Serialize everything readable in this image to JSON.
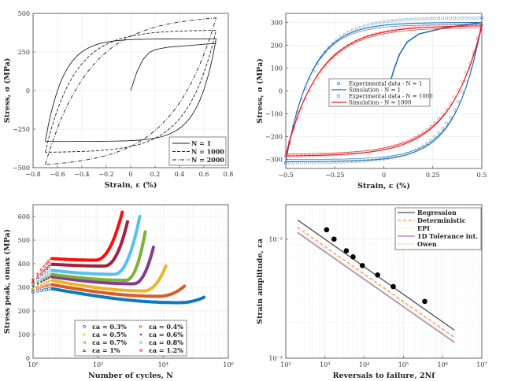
{
  "chart_data": [
    {
      "id": "hysteresis_loops",
      "type": "line",
      "title": "",
      "xlabel": "Strain, ε (%)",
      "ylabel": "Stress, σ (MPa)",
      "xlim": [
        -0.8,
        0.8
      ],
      "ylim": [
        -500,
        500
      ],
      "xticks": [
        -0.8,
        -0.6,
        -0.4,
        -0.2,
        0,
        0.2,
        0.4,
        0.6,
        0.8
      ],
      "xticklabels": [
        "−0.8",
        "−0.6",
        "−0.4",
        "−0.2",
        "0",
        "0.2",
        "0.4",
        "0.6",
        "0.8"
      ],
      "yticks": [
        -500,
        -250,
        0,
        250,
        500
      ],
      "yticklabels": [
        "−500",
        "−250",
        "0",
        "250",
        "500"
      ],
      "grid": true,
      "legend_position": "bottom-right",
      "initial_loading": {
        "x": [
          0,
          0.05,
          0.1,
          0.15,
          0.2,
          0.3,
          0.45,
          0.6,
          0.7
        ],
        "y": [
          0,
          120,
          200,
          245,
          265,
          280,
          290,
          300,
          305
        ]
      },
      "series": [
        {
          "name": "N = 1",
          "style": "solid",
          "amp": 0.7,
          "peak": 335,
          "valley": -330,
          "sy": 290,
          "shape": 3.2
        },
        {
          "name": "N = 1000",
          "style": "dashed",
          "amp": 0.7,
          "peak": 390,
          "valley": -400,
          "sy": 280,
          "shape": 2.0
        },
        {
          "name": "N = 2000",
          "style": "dashdot",
          "amp": 0.7,
          "peak": 470,
          "valley": -480,
          "sy": 285,
          "shape": 1.3
        }
      ]
    },
    {
      "id": "experiment_vs_simulation",
      "type": "line",
      "title": "",
      "xlabel": "Strain, ε (%)",
      "ylabel": "Stress, σ (MPa)",
      "xlim": [
        -0.5,
        0.5
      ],
      "ylim": [
        -340,
        340
      ],
      "xticks": [
        -0.5,
        -0.25,
        0,
        0.25,
        0.5
      ],
      "xticklabels": [
        "−0.5",
        "−0.25",
        "0",
        "0.25",
        "0.5"
      ],
      "yticks": [
        -300,
        -200,
        -100,
        0,
        100,
        200,
        300
      ],
      "yticklabels": [
        "−300",
        "−200",
        "−100",
        "0",
        "100",
        "200",
        "300"
      ],
      "grid": true,
      "legend_position": "center",
      "series": [
        {
          "name": "Experimental data - N = 1",
          "type": "markers",
          "color": "#2b7bba",
          "peak": 320,
          "valley": -315,
          "shape": 2.4
        },
        {
          "name": "Simulation - N = 1",
          "type": "line",
          "color": "#1f6fb5",
          "peak": 300,
          "valley": -310,
          "shape": 2.6
        },
        {
          "name": "Experimental data - N = 1000",
          "type": "markers",
          "color": "#e8474a",
          "peak": 290,
          "valley": -285,
          "shape": 1.9
        },
        {
          "name": "Simulation - N = 1000",
          "type": "line",
          "color": "#e31a1c",
          "peak": 285,
          "valley": -285,
          "shape": 2.0
        }
      ]
    },
    {
      "id": "cyclic_stress_response",
      "type": "scatter",
      "title": "",
      "xlabel": "Number of cycles, N",
      "ylabel": "Stress peak, σmax (MPa)",
      "xscale": "log",
      "xlim": [
        1,
        1000000
      ],
      "ylim": [
        0,
        650
      ],
      "xticks": [
        1,
        100,
        10000,
        1000000
      ],
      "xticklabels": [
        "10⁰",
        "10²",
        "10⁴",
        "10⁶"
      ],
      "yticks": [
        0,
        100,
        200,
        300,
        400,
        500,
        600
      ],
      "yticklabels": [
        "0",
        "100",
        "200",
        "300",
        "400",
        "500",
        "600"
      ],
      "grid": true,
      "legend_position": "bottom",
      "series": [
        {
          "name": "εa = 0.3%",
          "marker": "o",
          "color": "#0072bd",
          "start": 280,
          "plateau": 295,
          "min": 235,
          "end": 258,
          "nmin": 30000,
          "nf": 180000
        },
        {
          "name": "εa = 0.4%",
          "marker": ">",
          "color": "#d95319",
          "start": 290,
          "plateau": 312,
          "min": 262,
          "end": 305,
          "nmin": 7000,
          "nf": 45000
        },
        {
          "name": "εa = 0.5%",
          "marker": "*",
          "color": "#edb120",
          "start": 295,
          "plateau": 330,
          "min": 285,
          "end": 390,
          "nmin": 2500,
          "nf": 12000
        },
        {
          "name": "εa = 0.6%",
          "marker": "*",
          "color": "#7e2f8e",
          "start": 305,
          "plateau": 345,
          "min": 315,
          "end": 470,
          "nmin": 1200,
          "nf": 5000
        },
        {
          "name": "εa = 0.7%",
          "marker": "<",
          "color": "#77ac30",
          "start": 310,
          "plateau": 355,
          "min": 330,
          "end": 535,
          "nmin": 700,
          "nf": 2800
        },
        {
          "name": "εa = 0.8%",
          "marker": "o",
          "color": "#4dbeee",
          "start": 320,
          "plateau": 372,
          "min": 355,
          "end": 600,
          "nmin": 300,
          "nf": 1900
        },
        {
          "name": "εa = 1%",
          "marker": "^",
          "color": "#a2142f",
          "start": 325,
          "plateau": 398,
          "min": 390,
          "end": 578,
          "nmin": 150,
          "nf": 800
        },
        {
          "name": "εa = 1.2%",
          "marker": "d",
          "color": "#ff0000",
          "start": 332,
          "plateau": 422,
          "min": 415,
          "end": 618,
          "nmin": 80,
          "nf": 550
        }
      ]
    },
    {
      "id": "strain_life",
      "type": "line",
      "title": "",
      "xlabel": "Reversals to failure, 2Nf",
      "ylabel": "Strain amplitude, εa",
      "xscale": "log",
      "yscale": "log",
      "xlim": [
        100,
        10000000
      ],
      "ylim": [
        0.001,
        0.0195
      ],
      "xticks": [
        100,
        1000,
        10000,
        100000,
        1000000,
        10000000
      ],
      "xticklabels": [
        "10²",
        "10³",
        "10⁴",
        "10⁵",
        "10⁶",
        "10⁷"
      ],
      "yticks": [
        0.001,
        0.01
      ],
      "yticklabels": [
        "10⁻³",
        "10⁻²"
      ],
      "grid": true,
      "legend_position": "top-right",
      "points": {
        "x": [
          1100,
          1700,
          3500,
          5200,
          9000,
          22000,
          55000,
          350000
        ],
        "y": [
          0.012,
          0.01,
          0.008,
          0.0071,
          0.006,
          0.005,
          0.004,
          0.003
        ]
      },
      "series": [
        {
          "name": "Regression",
          "color": "#4d4d4d",
          "style": "solid",
          "x": [
            200,
            2000000
          ],
          "y": [
            0.0145,
            0.00172
          ]
        },
        {
          "name": "Deterministic",
          "color": "#f0a37a",
          "style": "dashed",
          "x": [
            200,
            2000000
          ],
          "y": [
            0.0126,
            0.0015
          ]
        },
        {
          "name": "EPI",
          "color": "#f2c84b",
          "style": "dotted",
          "x": [
            200,
            2000000
          ],
          "y": [
            0.0122,
            0.00146
          ]
        },
        {
          "name": "1D Tolerance int.",
          "color": "#b58bc4",
          "style": "solid",
          "x": [
            200,
            2000000
          ],
          "y": [
            0.0114,
            0.00136
          ]
        },
        {
          "name": "Owen",
          "color": "#7cc06a",
          "style": "dotted",
          "x": [
            200,
            2000000
          ],
          "y": [
            0.0112,
            0.00134
          ]
        }
      ]
    }
  ]
}
